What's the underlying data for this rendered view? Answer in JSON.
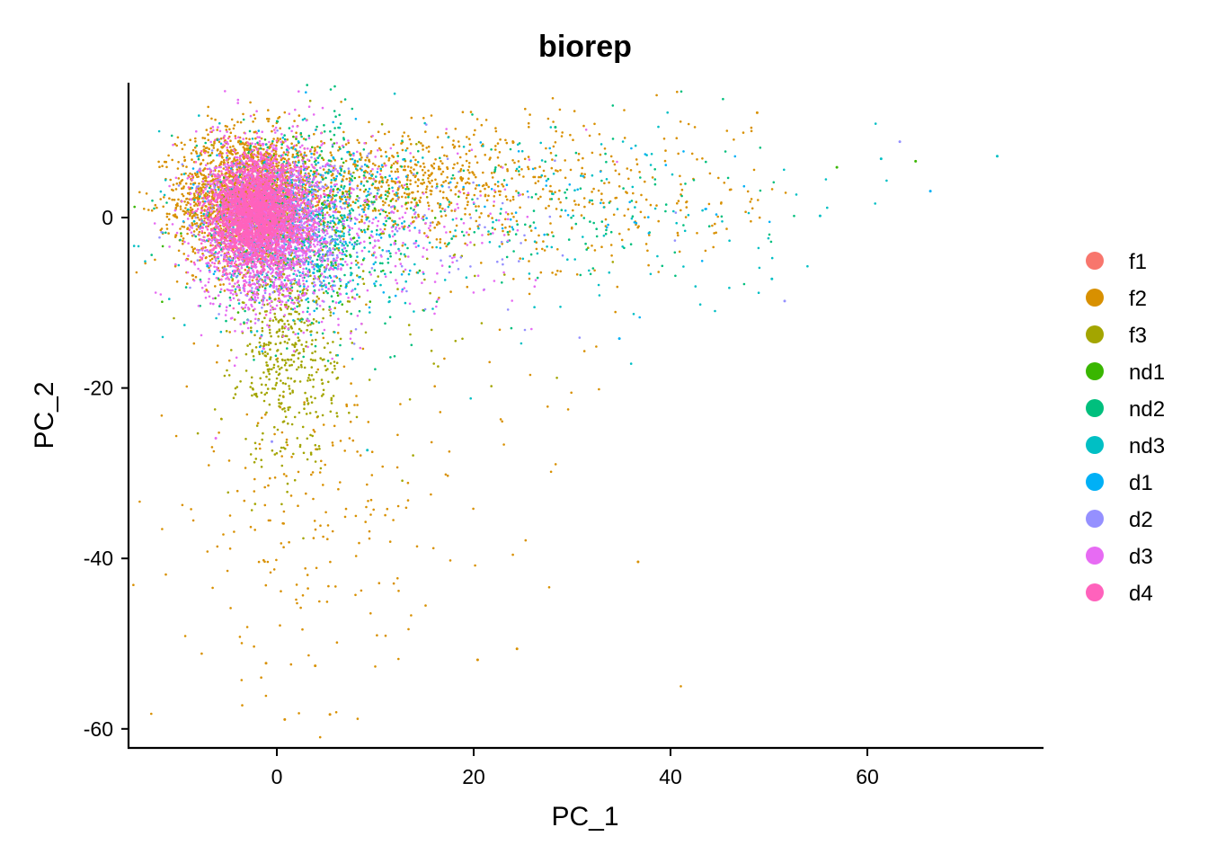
{
  "chart_data": {
    "type": "scatter",
    "title": "biorep",
    "xlabel": "PC_1",
    "ylabel": "PC_2",
    "xlim": [
      -15,
      78
    ],
    "ylim": [
      -62,
      16
    ],
    "x_ticks": [
      0,
      20,
      40,
      60
    ],
    "y_ticks": [
      0,
      -20,
      -40,
      -60
    ],
    "grid": false,
    "legend_position": "right",
    "series": [
      {
        "name": "f1",
        "color": "#F8766D",
        "clusters": [],
        "points": []
      },
      {
        "name": "f2",
        "color": "#D89000",
        "clusters": [
          {
            "cx": -3,
            "cy": 2,
            "sx": 3.5,
            "sy": 4,
            "n": 2200
          },
          {
            "cx": 12,
            "cy": 4,
            "sx": 10,
            "sy": 3,
            "n": 700
          },
          {
            "cx": 30,
            "cy": 2,
            "sx": 12,
            "sy": 5,
            "n": 250
          },
          {
            "cx": 2,
            "cy": -35,
            "sx": 6,
            "sy": 10,
            "n": 180
          },
          {
            "cx": 15,
            "cy": -30,
            "sx": 10,
            "sy": 12,
            "n": 60
          }
        ],
        "points": [
          [
            48.8,
            12.3
          ],
          [
            -10.2,
            0.1
          ],
          [
            5.4,
            -58.3
          ],
          [
            0.8,
            -58.9
          ],
          [
            36.7,
            -40.4
          ],
          [
            24.4,
            -50.6
          ],
          [
            20.4,
            -51.9
          ],
          [
            -1.1,
            -52.3
          ],
          [
            3.9,
            -52.6
          ]
        ]
      },
      {
        "name": "f3",
        "color": "#A3A500",
        "clusters": [
          {
            "cx": 1,
            "cy": -15,
            "sx": 2.5,
            "sy": 7,
            "n": 500
          },
          {
            "cx": 8,
            "cy": -8,
            "sx": 8,
            "sy": 8,
            "n": 120
          }
        ],
        "points": []
      },
      {
        "name": "nd1",
        "color": "#39B600",
        "clusters": [
          {
            "cx": 4,
            "cy": 0,
            "sx": 6,
            "sy": 5,
            "n": 150
          }
        ],
        "points": [
          [
            56.9,
            5.9
          ],
          [
            64.9,
            6.6
          ]
        ]
      },
      {
        "name": "nd2",
        "color": "#00BF7D",
        "clusters": [
          {
            "cx": 2,
            "cy": 0,
            "sx": 5,
            "sy": 6,
            "n": 450
          },
          {
            "cx": 25,
            "cy": 1,
            "sx": 12,
            "sy": 5,
            "n": 150
          }
        ],
        "points": [
          [
            28.3,
            10.6
          ]
        ]
      },
      {
        "name": "nd3",
        "color": "#00BFC4",
        "clusters": [
          {
            "cx": 3,
            "cy": -2,
            "sx": 6,
            "sy": 6,
            "n": 350
          },
          {
            "cx": 28,
            "cy": 0,
            "sx": 12,
            "sy": 6,
            "n": 120
          }
        ],
        "points": [
          [
            73.2,
            7.2
          ],
          [
            61.4,
            6.9
          ],
          [
            55.2,
            0.2
          ],
          [
            50.3,
            -7.2
          ],
          [
            9.2,
            -27.3
          ]
        ]
      },
      {
        "name": "d1",
        "color": "#00B0F6",
        "clusters": [
          {
            "cx": 2,
            "cy": 0,
            "sx": 5,
            "sy": 5,
            "n": 250
          },
          {
            "cx": 25,
            "cy": 2,
            "sx": 12,
            "sy": 4,
            "n": 60
          }
        ],
        "points": [
          [
            66.4,
            3.1
          ],
          [
            34.8,
            -14.2
          ]
        ]
      },
      {
        "name": "d2",
        "color": "#9590FF",
        "clusters": [
          {
            "cx": 0,
            "cy": -1,
            "sx": 4,
            "sy": 4,
            "n": 600
          },
          {
            "cx": 15,
            "cy": -2,
            "sx": 8,
            "sy": 5,
            "n": 80
          }
        ],
        "points": [
          [
            63.3,
            8.9
          ],
          [
            51.6,
            -9.8
          ],
          [
            -0.5,
            -26.3
          ]
        ]
      },
      {
        "name": "d3",
        "color": "#E76BF3",
        "clusters": [
          {
            "cx": -1,
            "cy": -1,
            "sx": 3.5,
            "sy": 5,
            "n": 1800
          },
          {
            "cx": 12,
            "cy": -2,
            "sx": 7,
            "sy": 5,
            "n": 200
          }
        ],
        "points": [
          [
            -6.2,
            -25.9
          ]
        ]
      },
      {
        "name": "d4",
        "color": "#FF62BC",
        "clusters": [
          {
            "cx": -2,
            "cy": 0.5,
            "sx": 2.2,
            "sy": 3,
            "n": 2200
          }
        ],
        "points": []
      }
    ]
  }
}
